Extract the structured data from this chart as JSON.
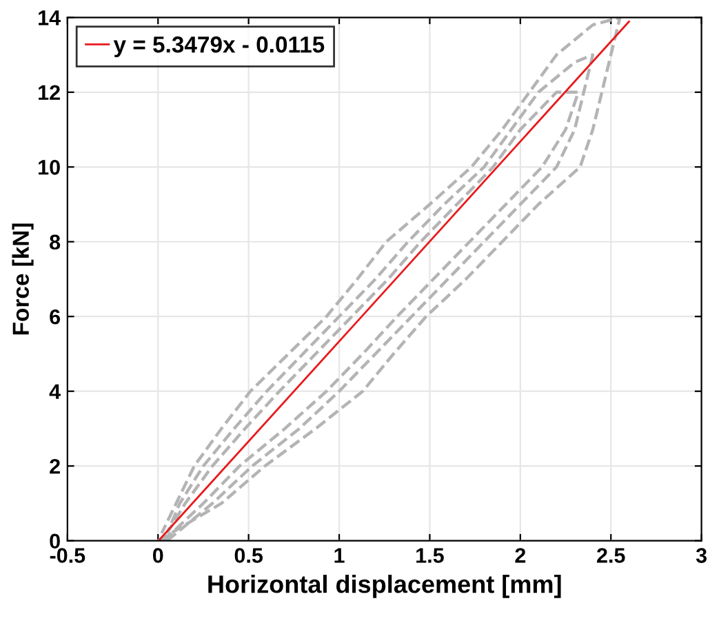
{
  "chart_data": {
    "type": "line",
    "xlabel": "Horizontal displacement [mm]",
    "ylabel": "Force [kN]",
    "xlim": [
      -0.5,
      3
    ],
    "xticks": [
      -0.5,
      0,
      0.5,
      1,
      1.5,
      2,
      2.5,
      3
    ],
    "ylim": [
      0,
      14
    ],
    "yticks": [
      0,
      2,
      4,
      6,
      8,
      10,
      12,
      14
    ],
    "grid": true,
    "legend": "top left",
    "series": [
      {
        "color": "#b4b4b4",
        "line_style": "dashed",
        "x": [
          0,
          0.35,
          0.59,
          0.87,
          1.13,
          1.3,
          1.48,
          1.7,
          1.9,
          2.1,
          2.33,
          2.4,
          2.45,
          2.5,
          2.55,
          2.4,
          2.2,
          2.05,
          1.9,
          1.73,
          1.5,
          1.26,
          1.1,
          0.93,
          0.72,
          0.51,
          0.35,
          0.2,
          0.1,
          0.02
        ],
        "values": [
          0,
          1,
          2,
          3,
          4,
          5,
          6,
          7,
          8,
          9,
          10,
          11,
          12,
          13,
          14,
          13.8,
          13,
          12,
          11,
          10,
          9,
          8,
          7,
          6,
          5,
          4,
          3,
          2,
          1,
          0.2
        ]
      },
      {
        "color": "#b4b4b4",
        "line_style": "dashed",
        "x": [
          0.05,
          0.3,
          0.52,
          0.78,
          1.0,
          1.2,
          1.4,
          1.6,
          1.8,
          2.0,
          2.2,
          2.3,
          2.35,
          2.4,
          2.3,
          2.1,
          1.95,
          1.8,
          1.58,
          1.38,
          1.2,
          1.0,
          0.8,
          0.6,
          0.42,
          0.25,
          0.12,
          0.05
        ],
        "values": [
          0,
          1,
          2,
          3,
          4,
          5,
          6,
          7,
          8,
          9,
          10,
          11,
          12,
          13,
          12.8,
          12,
          11,
          10,
          9,
          8,
          7,
          6,
          5,
          4,
          3,
          2,
          1,
          0.2
        ]
      },
      {
        "color": "#b4b4b4",
        "line_style": "dashed",
        "x": [
          0.03,
          0.25,
          0.45,
          0.7,
          0.93,
          1.13,
          1.32,
          1.52,
          1.72,
          1.92,
          2.12,
          2.25,
          2.32,
          2.2,
          2.0,
          1.85,
          1.65,
          1.45,
          1.27,
          1.07,
          0.87,
          0.67,
          0.48,
          0.3,
          0.15,
          0.05
        ],
        "values": [
          0,
          1,
          2,
          3,
          4,
          5,
          6,
          7,
          8,
          9,
          10,
          11,
          12,
          12,
          11,
          10,
          9,
          8,
          7,
          6,
          5,
          4,
          3,
          2,
          1,
          0.2
        ]
      },
      {
        "name": "y = 5.3479x - 0.0115",
        "color": "#e8191c",
        "line_style": "solid",
        "x": [
          0.01,
          2.6
        ],
        "values": [
          0.04,
          13.89
        ]
      }
    ]
  }
}
